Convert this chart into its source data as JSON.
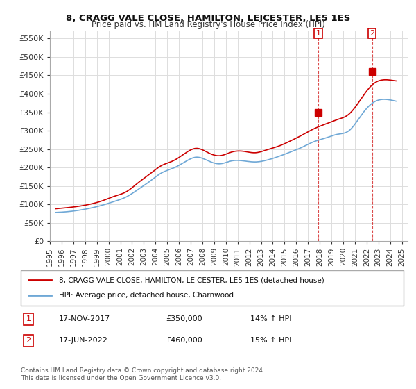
{
  "title1": "8, CRAGG VALE CLOSE, HAMILTON, LEICESTER, LE5 1ES",
  "title2": "Price paid vs. HM Land Registry's House Price Index (HPI)",
  "ylabel": "",
  "xlabel": "",
  "ylim": [
    0,
    570000
  ],
  "yticks": [
    0,
    50000,
    100000,
    150000,
    200000,
    250000,
    300000,
    350000,
    400000,
    450000,
    500000,
    550000
  ],
  "ytick_labels": [
    "£0",
    "£50K",
    "£100K",
    "£150K",
    "£200K",
    "£250K",
    "£300K",
    "£350K",
    "£400K",
    "£450K",
    "£500K",
    "£550K"
  ],
  "hpi_color": "#6fa8d6",
  "price_color": "#cc0000",
  "background_color": "#ffffff",
  "grid_color": "#dddddd",
  "marker1_year": 2017.88,
  "marker1_price": 350000,
  "marker1_label": "1",
  "marker2_year": 2022.46,
  "marker2_price": 460000,
  "marker2_label": "2",
  "legend_line1": "8, CRAGG VALE CLOSE, HAMILTON, LEICESTER, LE5 1ES (detached house)",
  "legend_line2": "HPI: Average price, detached house, Charnwood",
  "table_row1": [
    "1",
    "17-NOV-2017",
    "£350,000",
    "14% ↑ HPI"
  ],
  "table_row2": [
    "2",
    "17-JUN-2022",
    "£460,000",
    "15% ↑ HPI"
  ],
  "footnote": "Contains HM Land Registry data © Crown copyright and database right 2024.\nThis data is licensed under the Open Government Licence v3.0.",
  "xtick_years": [
    1995,
    1996,
    1997,
    1998,
    1999,
    2000,
    2001,
    2002,
    2003,
    2004,
    2005,
    2006,
    2007,
    2008,
    2009,
    2010,
    2011,
    2012,
    2013,
    2014,
    2015,
    2016,
    2017,
    2018,
    2019,
    2020,
    2021,
    2022,
    2023,
    2024,
    2025
  ]
}
